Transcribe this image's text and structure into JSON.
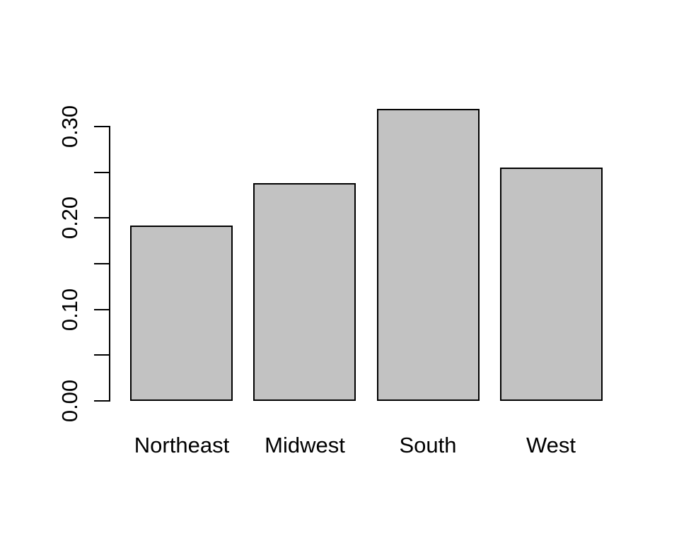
{
  "chart_data": {
    "type": "bar",
    "title": "",
    "xlabel": "",
    "ylabel": "",
    "categories": [
      "Northeast",
      "Midwest",
      "South",
      "West"
    ],
    "values": [
      0.192,
      0.238,
      0.319,
      0.255
    ],
    "ylim": [
      0,
      0.3
    ],
    "y_ticks": [
      {
        "value": 0.0,
        "label": "0.00"
      },
      {
        "value": 0.05,
        "label": ""
      },
      {
        "value": 0.1,
        "label": "0.10"
      },
      {
        "value": 0.15,
        "label": ""
      },
      {
        "value": 0.2,
        "label": "0.20"
      },
      {
        "value": 0.25,
        "label": ""
      },
      {
        "value": 0.3,
        "label": "0.30"
      }
    ],
    "grid": false,
    "legend": null,
    "colors": {
      "bar_fill": "#c2c2c2",
      "bar_border": "#000000",
      "axis": "#000000",
      "background": "#ffffff"
    }
  }
}
